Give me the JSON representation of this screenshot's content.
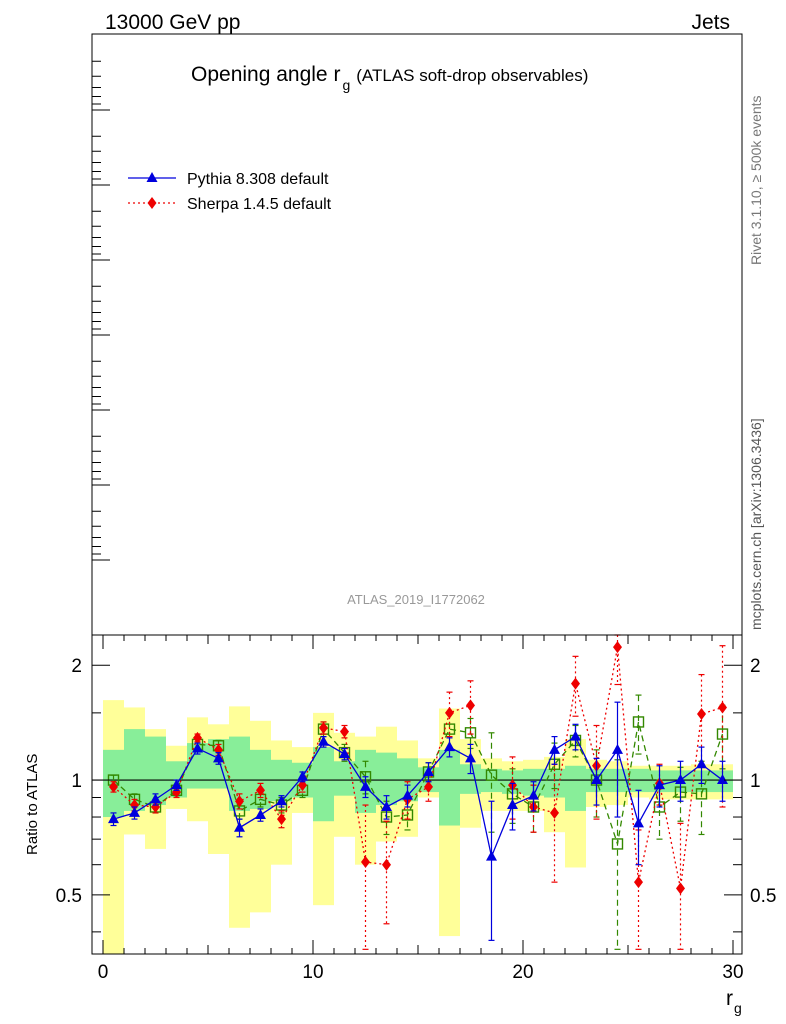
{
  "header": {
    "left": "13000 GeV pp",
    "right": "Jets"
  },
  "title": {
    "main": "Opening angle r",
    "sub": "g",
    "extra": "(ATLAS soft-drop observables)"
  },
  "side_labels": {
    "rivet": "Rivet 3.1.10, ≥ 500k events",
    "mcplots": "mcplots.cern.ch [arXiv:1306.3436]"
  },
  "analysis_id": "ATLAS_2019_I1772062",
  "legend": [
    {
      "name": "Pythia 8.308 default",
      "color": "#0000dd",
      "style": "solid",
      "marker": "triangle"
    },
    {
      "name": "Sherpa 1.4.5 default",
      "color": "#ee0000",
      "style": "dotted",
      "marker": "diamond"
    }
  ],
  "colors": {
    "band_inner": "#88ee99",
    "band_outer": "#ffff99",
    "pythia": "#0000dd",
    "sherpa": "#ee0000",
    "third": "#338800"
  },
  "chart_data": {
    "type": "line",
    "ylabel": "Ratio to ATLAS",
    "xlabel_main": "r",
    "xlabel_sub": "g",
    "xlim": [
      -1,
      31
    ],
    "ylim": [
      0.35,
      2.4
    ],
    "x_ticks": [
      "0",
      "10",
      "20",
      "30"
    ],
    "y_ticks": [
      "0.5",
      "1",
      "2"
    ],
    "x": [
      0.5,
      1.5,
      2.5,
      3.5,
      4.5,
      5.5,
      6.5,
      7.5,
      8.5,
      9.5,
      10.5,
      11.5,
      12.5,
      13.5,
      14.5,
      15.5,
      16.5,
      17.5,
      18.5,
      19.5,
      20.5,
      21.5,
      22.5,
      23.5,
      24.5,
      25.5,
      26.5,
      27.5,
      28.5,
      29.5
    ],
    "band_inner": [
      [
        0.8,
        1.2
      ],
      [
        0.83,
        1.36
      ],
      [
        0.86,
        1.3
      ],
      [
        0.9,
        1.12
      ],
      [
        0.95,
        1.25
      ],
      [
        0.95,
        1.28
      ],
      [
        0.83,
        1.3
      ],
      [
        0.84,
        1.2
      ],
      [
        0.88,
        1.13
      ],
      [
        0.9,
        1.11
      ],
      [
        0.78,
        1.22
      ],
      [
        0.91,
        1.12
      ],
      [
        0.82,
        1.2
      ],
      [
        0.86,
        1.18
      ],
      [
        0.88,
        1.14
      ],
      [
        0.93,
        1.08
      ],
      [
        0.76,
        1.2
      ],
      [
        0.92,
        1.1
      ],
      [
        0.93,
        1.07
      ],
      [
        0.92,
        1.06
      ],
      [
        0.91,
        1.07
      ],
      [
        0.9,
        1.07
      ],
      [
        0.83,
        1.09
      ],
      [
        0.93,
        1.07
      ],
      [
        0.93,
        1.07
      ],
      [
        0.93,
        1.07
      ],
      [
        0.93,
        1.06
      ],
      [
        0.93,
        1.06
      ],
      [
        0.93,
        1.06
      ],
      [
        0.93,
        1.06
      ]
    ],
    "band_outer": [
      [
        0.35,
        1.62
      ],
      [
        0.72,
        1.55
      ],
      [
        0.66,
        1.36
      ],
      [
        0.84,
        1.23
      ],
      [
        0.78,
        1.46
      ],
      [
        0.64,
        1.4
      ],
      [
        0.41,
        1.56
      ],
      [
        0.45,
        1.43
      ],
      [
        0.6,
        1.27
      ],
      [
        0.82,
        1.22
      ],
      [
        0.47,
        1.5
      ],
      [
        0.71,
        1.33
      ],
      [
        0.6,
        1.3
      ],
      [
        0.69,
        1.38
      ],
      [
        0.71,
        1.27
      ],
      [
        0.9,
        1.14
      ],
      [
        0.39,
        1.54
      ],
      [
        0.75,
        1.28
      ],
      [
        0.83,
        1.14
      ],
      [
        0.83,
        1.12
      ],
      [
        0.83,
        1.13
      ],
      [
        0.73,
        1.15
      ],
      [
        0.59,
        1.28
      ],
      [
        0.85,
        1.13
      ],
      [
        0.86,
        1.12
      ],
      [
        0.9,
        1.09
      ],
      [
        0.89,
        1.09
      ],
      [
        0.89,
        1.09
      ],
      [
        0.89,
        1.1
      ],
      [
        0.89,
        1.1
      ]
    ],
    "series": [
      {
        "name": "Pythia 8.308 default",
        "values": [
          0.79,
          0.82,
          0.89,
          0.97,
          1.21,
          1.14,
          0.75,
          0.81,
          0.88,
          1.02,
          1.26,
          1.17,
          0.96,
          0.85,
          0.91,
          1.05,
          1.22,
          1.14,
          0.63,
          0.86,
          0.91,
          1.2,
          1.3,
          1.0,
          1.2,
          0.77,
          0.97,
          1.0,
          1.1,
          1.0
        ],
        "errors": [
          0.03,
          0.03,
          0.03,
          0.03,
          0.04,
          0.04,
          0.04,
          0.03,
          0.03,
          0.03,
          0.04,
          0.04,
          0.06,
          0.06,
          0.06,
          0.06,
          0.07,
          0.1,
          0.25,
          0.12,
          0.08,
          0.1,
          0.1,
          0.14,
          0.4,
          0.17,
          0.12,
          0.12,
          0.12,
          0.12
        ]
      },
      {
        "name": "Sherpa 1.4.5 default",
        "values": [
          0.96,
          0.86,
          0.85,
          0.93,
          1.29,
          1.2,
          0.88,
          0.94,
          0.79,
          0.97,
          1.37,
          1.34,
          0.61,
          0.6,
          0.89,
          0.96,
          1.5,
          1.57,
          null,
          0.97,
          0.85,
          0.82,
          1.79,
          1.09,
          2.23,
          0.54,
          0.98,
          0.52,
          1.49,
          1.55
        ],
        "errors": [
          0.03,
          0.03,
          0.03,
          0.03,
          0.03,
          0.04,
          0.04,
          0.04,
          0.04,
          0.04,
          0.05,
          0.05,
          0.25,
          0.18,
          0.1,
          0.08,
          0.2,
          0.25,
          null,
          0.18,
          0.12,
          0.28,
          0.32,
          0.3,
          0.45,
          0.2,
          0.12,
          0.25,
          0.4,
          0.7
        ]
      },
      {
        "name": "",
        "values": [
          1.0,
          0.89,
          0.85,
          0.94,
          1.24,
          1.23,
          0.83,
          0.89,
          0.86,
          0.94,
          1.36,
          1.18,
          1.02,
          0.8,
          0.81,
          1.05,
          1.36,
          1.33,
          1.03,
          0.92,
          0.85,
          1.1,
          1.27,
          1.0,
          0.68,
          1.42,
          0.85,
          0.93,
          0.92,
          1.32
        ],
        "errors": [
          0.03,
          0.03,
          0.03,
          0.03,
          0.04,
          0.04,
          0.04,
          0.04,
          0.04,
          0.04,
          0.06,
          0.06,
          0.1,
          0.08,
          0.07,
          0.06,
          0.15,
          0.12,
          0.3,
          0.15,
          0.12,
          0.15,
          0.12,
          0.2,
          0.45,
          0.25,
          0.15,
          0.15,
          0.2,
          0.25
        ]
      }
    ]
  }
}
